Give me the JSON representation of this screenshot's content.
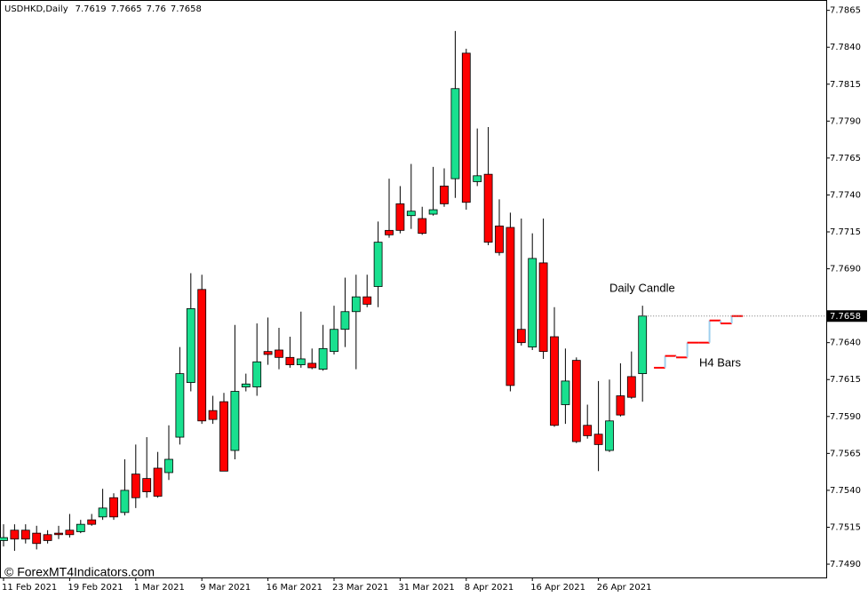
{
  "chart_data": {
    "type": "candlestick",
    "symbol": "USDHKD,Daily",
    "categories": [
      "11 Feb 2021",
      null,
      null,
      null,
      null,
      null,
      "19 Feb 2021",
      null,
      null,
      null,
      null,
      null,
      "1 Mar 2021",
      null,
      null,
      null,
      null,
      null,
      "9 Mar 2021",
      null,
      null,
      null,
      null,
      null,
      "16 Mar 2021",
      null,
      null,
      null,
      null,
      null,
      "23 Mar 2021",
      null,
      null,
      null,
      null,
      null,
      "31 Mar 2021",
      null,
      null,
      null,
      null,
      null,
      "8 Apr 2021",
      null,
      null,
      null,
      null,
      null,
      "16 Apr 2021",
      null,
      null,
      null,
      null,
      null,
      "26 Apr 2021",
      null,
      null,
      null,
      null
    ],
    "open": [
      7.7506,
      7.7513,
      7.7513,
      7.7511,
      7.751,
      7.7511,
      7.7513,
      7.7512,
      7.752,
      7.7522,
      7.7535,
      7.7525,
      7.7551,
      7.7548,
      7.7555,
      7.7552,
      7.7576,
      7.7613,
      7.7676,
      7.7594,
      7.76,
      7.7567,
      7.761,
      7.761,
      7.7634,
      7.7635,
      7.763,
      7.7625,
      7.7626,
      7.7622,
      7.7634,
      7.7649,
      7.7661,
      7.7671,
      7.7678,
      7.7716,
      7.7734,
      7.7726,
      7.7724,
      7.7727,
      7.7746,
      7.7751,
      7.7836,
      7.7749,
      7.7754,
      7.7719,
      7.7718,
      7.7649,
      7.7637,
      7.7694,
      7.7644,
      7.7598,
      7.7628,
      7.7584,
      7.7578,
      7.7567,
      7.7604,
      7.7617,
      7.7619
    ],
    "high": [
      7.7517,
      7.7517,
      7.7517,
      7.7516,
      7.7513,
      7.7516,
      7.7524,
      7.752,
      7.7524,
      7.7541,
      7.7538,
      7.7561,
      7.7571,
      7.7576,
      7.7566,
      7.7584,
      7.7637,
      7.7687,
      7.7686,
      7.7604,
      7.7606,
      7.7652,
      7.7619,
      7.7653,
      7.7657,
      7.765,
      7.7644,
      7.7661,
      7.7636,
      7.7652,
      7.7665,
      7.7684,
      7.7686,
      7.7686,
      7.7722,
      7.7751,
      7.7746,
      7.7761,
      7.7732,
      7.7759,
      7.7758,
      7.7851,
      7.7839,
      7.7785,
      7.7786,
      7.7737,
      7.7728,
      7.7724,
      7.7714,
      7.7724,
      7.7664,
      7.7636,
      7.763,
      7.7598,
      7.7614,
      7.7615,
      7.7626,
      7.7634,
      7.7665
    ],
    "low": [
      7.7502,
      7.7499,
      7.7504,
      7.75,
      7.7504,
      7.7507,
      7.7508,
      7.7511,
      7.7516,
      7.752,
      7.752,
      7.7523,
      7.7528,
      7.7535,
      7.7535,
      7.7547,
      7.7571,
      7.7607,
      7.7585,
      7.7585,
      7.7553,
      7.7561,
      7.7607,
      7.7604,
      7.7625,
      7.7622,
      7.7623,
      7.7623,
      7.7622,
      7.7621,
      7.7632,
      7.7637,
      7.7622,
      7.7664,
      7.7664,
      7.7711,
      7.7714,
      7.7717,
      7.7713,
      7.7726,
      7.7732,
      7.7738,
      7.773,
      7.7746,
      7.7706,
      7.7699,
      7.7607,
      7.7638,
      7.7635,
      7.7629,
      7.7583,
      7.7585,
      7.7572,
      7.7575,
      7.7553,
      7.7566,
      7.759,
      7.7602,
      7.76
    ],
    "close": [
      7.7508,
      7.7507,
      7.7507,
      7.7504,
      7.7506,
      7.751,
      7.751,
      7.7517,
      7.7517,
      7.7528,
      7.7522,
      7.754,
      7.7535,
      7.7539,
      7.7536,
      7.7561,
      7.7619,
      7.7663,
      7.7587,
      7.7588,
      7.7553,
      7.7607,
      7.7612,
      7.7627,
      7.7632,
      7.763,
      7.7625,
      7.7629,
      7.7623,
      7.7636,
      7.7649,
      7.7661,
      7.7671,
      7.7666,
      7.7708,
      7.7713,
      7.7716,
      7.7729,
      7.7714,
      7.773,
      7.7734,
      7.7812,
      7.7735,
      7.7753,
      7.7708,
      7.7701,
      7.7611,
      7.764,
      7.7697,
      7.7634,
      7.7584,
      7.7614,
      7.7573,
      7.7577,
      7.7571,
      7.7587,
      7.7591,
      7.7603,
      7.7658
    ],
    "up_color": "#19e08f",
    "down_color": "#ff0000",
    "ylim": [
      7.7481,
      7.7872
    ],
    "yticks": [
      7.7865,
      {
        "value": 7.784,
        "label": "7.7840"
      },
      7.7815,
      {
        "value": 7.779,
        "label": "7.7790"
      },
      7.7765,
      {
        "value": 7.774,
        "label": "7.7740"
      },
      7.7715,
      {
        "value": 7.769,
        "label": "7.7690"
      },
      {
        "value": 7.764,
        "label": "7.7640"
      },
      7.7615,
      {
        "value": 7.759,
        "label": "7.7590"
      },
      7.7565,
      {
        "value": 7.754,
        "label": "7.7540"
      },
      7.7515,
      {
        "value": 7.749,
        "label": "7.7490"
      }
    ],
    "h4_bars": {
      "values": [
        7.7623,
        7.7631,
        7.763,
        7.764,
        7.764,
        7.7655,
        7.7653,
        7.7658
      ],
      "color": "#ff0000",
      "connector_color": "#9fd0ee"
    },
    "annotations": [
      "Daily Candle",
      "H4 Bars"
    ],
    "watermark": "© ForexMT4Indicators.com"
  }
}
